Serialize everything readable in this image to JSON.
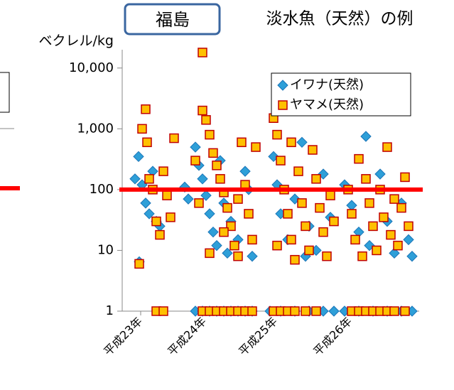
{
  "chart_data": {
    "type": "scatter",
    "badge": "福島",
    "title": "淡水魚（天然）の例",
    "y_label": "ベクレル/kg",
    "log_y": true,
    "ylim": [
      1,
      20000
    ],
    "yticks": [
      {
        "value": 10000,
        "label": "10,000"
      },
      {
        "value": 1000,
        "label": "1,000"
      },
      100,
      10,
      1
    ],
    "xlim": [
      22.87,
      27.05
    ],
    "xticks": [
      {
        "value": 23.13,
        "label": "平成23年"
      },
      {
        "value": 24.03,
        "label": "平成24年"
      },
      {
        "value": 25.03,
        "label": "平成25年"
      },
      {
        "value": 26.08,
        "label": "平成26年"
      }
    ],
    "reference_line": {
      "value": 100,
      "color": "#ff0000"
    },
    "legend": "top-right",
    "series": [
      {
        "name": "イワナ(天然)",
        "marker": "diamond",
        "color": "#2e9fd8",
        "edge": "#1b75b8",
        "x": [
          23.05,
          23.1,
          23.15,
          23.2,
          23.25,
          23.3,
          23.35,
          23.11,
          23.4,
          23.75,
          23.8,
          23.9,
          23.95,
          24.0,
          24.05,
          24.1,
          24.15,
          24.2,
          24.25,
          24.3,
          24.4,
          24.5,
          24.6,
          24.7,
          24.65,
          24.35,
          25.0,
          25.05,
          25.1,
          25.2,
          25.3,
          25.4,
          25.5,
          25.6,
          25.7,
          25.8,
          25.45,
          26.0,
          26.1,
          26.2,
          26.3,
          26.35,
          26.5,
          26.6,
          26.7,
          26.8,
          26.9,
          26.95,
          23.9,
          24.0,
          24.1,
          24.2,
          24.3,
          24.4,
          24.5,
          24.6,
          24.7,
          24.95,
          25.1,
          25.3,
          25.5,
          25.7,
          25.85,
          26.0,
          26.2,
          26.4,
          26.6,
          26.8,
          26.95
        ],
        "values": [
          150,
          350,
          120,
          60,
          40,
          200,
          30,
          6.5,
          25,
          110,
          70,
          500,
          250,
          150,
          80,
          40,
          20,
          12,
          300,
          60,
          30,
          15,
          200,
          8,
          100,
          9,
          350,
          120,
          40,
          15,
          70,
          600,
          25,
          10,
          180,
          35,
          8,
          120,
          55,
          20,
          750,
          12,
          180,
          30,
          9,
          60,
          15,
          8,
          1,
          1,
          1,
          1,
          1,
          1,
          1,
          1,
          1,
          1,
          1,
          1,
          1,
          1,
          1,
          1,
          1,
          1,
          1,
          1,
          1
        ]
      },
      {
        "name": "ヤマメ(天然)",
        "marker": "square",
        "color": "#ffc000",
        "edge": "#c00000",
        "x": [
          23.11,
          23.15,
          23.2,
          23.22,
          23.25,
          23.3,
          23.35,
          23.4,
          23.45,
          23.5,
          23.55,
          23.6,
          23.35,
          23.45,
          24.0,
          24.0,
          24.05,
          24.1,
          24.15,
          24.2,
          24.25,
          24.3,
          24.35,
          24.4,
          24.45,
          24.5,
          24.55,
          24.6,
          24.65,
          24.7,
          24.75,
          23.95,
          23.9,
          24.1,
          24.3,
          24.5,
          25.0,
          25.05,
          25.1,
          25.15,
          25.2,
          25.25,
          25.3,
          25.35,
          25.4,
          25.45,
          25.5,
          25.55,
          25.6,
          25.65,
          25.7,
          25.75,
          25.8,
          25.85,
          25.05,
          25.25,
          26.2,
          26.6,
          26.05,
          26.1,
          26.15,
          26.25,
          26.3,
          26.35,
          26.4,
          26.45,
          26.5,
          26.55,
          26.65,
          26.7,
          26.75,
          26.85,
          26.8,
          26.9,
          24.0,
          24.1,
          24.2,
          24.3,
          24.4,
          24.5,
          24.6,
          24.7,
          25.0,
          25.1,
          25.2,
          25.3,
          25.45,
          25.6,
          26.1,
          26.2,
          26.3,
          26.4,
          26.5,
          26.6,
          26.7,
          26.85
        ],
        "values": [
          6,
          1000,
          2100,
          600,
          150,
          100,
          30,
          18,
          200,
          80,
          35,
          700,
          1,
          1,
          18000,
          2000,
          1400,
          800,
          400,
          250,
          150,
          90,
          50,
          25,
          12,
          8,
          600,
          120,
          40,
          15,
          500,
          60,
          300,
          9,
          20,
          70,
          1500,
          800,
          300,
          100,
          40,
          15,
          7,
          200,
          60,
          25,
          10,
          450,
          150,
          50,
          20,
          8,
          80,
          30,
          12,
          600,
          320,
          500,
          100,
          40,
          15,
          8,
          150,
          60,
          25,
          10,
          100,
          35,
          18,
          70,
          12,
          160,
          50,
          25,
          1,
          1,
          1,
          1,
          1,
          1,
          1,
          1,
          1,
          1,
          1,
          1,
          1,
          1,
          1,
          1,
          1,
          1,
          1,
          1,
          1,
          1
        ]
      }
    ]
  }
}
